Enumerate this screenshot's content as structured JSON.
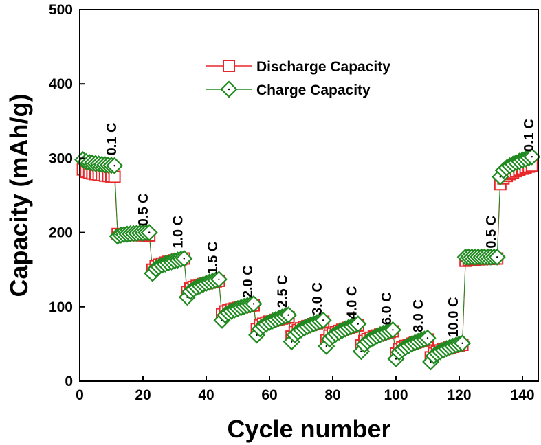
{
  "chart_data": {
    "type": "scatter",
    "title": "",
    "xlabel": "Cycle number",
    "ylabel": "Capacity (mAh/g)",
    "xlim": [
      0,
      145
    ],
    "ylim": [
      0,
      500
    ],
    "xticks": [
      "0",
      "20",
      "40",
      "60",
      "80",
      "100",
      "120",
      "140"
    ],
    "yticks": [
      "0",
      "100",
      "200",
      "300",
      "400",
      "500"
    ],
    "legend_position": "top-center",
    "colors": {
      "discharge": "#e8272b",
      "charge": "#1f8a1f"
    },
    "rate_labels": [
      {
        "text": "0.1 C",
        "x": 10,
        "y": 300
      },
      {
        "text": "0.5 C",
        "x": 20,
        "y": 205
      },
      {
        "text": "1.0 C",
        "x": 31,
        "y": 175
      },
      {
        "text": "1.5 C",
        "x": 42,
        "y": 140
      },
      {
        "text": "2.0 C",
        "x": 53,
        "y": 108
      },
      {
        "text": "2.5 C",
        "x": 64,
        "y": 95
      },
      {
        "text": "3.0 C",
        "x": 75,
        "y": 85
      },
      {
        "text": "4.0 C",
        "x": 86,
        "y": 80
      },
      {
        "text": "6.0 C",
        "x": 97,
        "y": 72
      },
      {
        "text": "8.0 C",
        "x": 107,
        "y": 62
      },
      {
        "text": "10.0 C",
        "x": 118,
        "y": 55
      },
      {
        "text": "0.5 C",
        "x": 130,
        "y": 175
      },
      {
        "text": "0.1 C",
        "x": 142,
        "y": 305
      }
    ],
    "segments": [
      {
        "rate": "0.1 C",
        "start": 1,
        "end": 11,
        "dis": [
          285,
          275
        ],
        "chg": [
          298,
          290
        ]
      },
      {
        "rate": "0.5 C",
        "start": 12,
        "end": 22,
        "dis": [
          198,
          196
        ],
        "chg": [
          195,
          200
        ]
      },
      {
        "rate": "1.0 C",
        "start": 23,
        "end": 33,
        "dis": [
          150,
          165
        ],
        "chg": [
          145,
          165
        ]
      },
      {
        "rate": "1.5 C",
        "start": 34,
        "end": 44,
        "dis": [
          120,
          135
        ],
        "chg": [
          113,
          137
        ]
      },
      {
        "rate": "2.0 C",
        "start": 45,
        "end": 55,
        "dis": [
          90,
          102
        ],
        "chg": [
          82,
          104
        ]
      },
      {
        "rate": "2.5 C",
        "start": 56,
        "end": 66,
        "dis": [
          70,
          86
        ],
        "chg": [
          62,
          89
        ]
      },
      {
        "rate": "3.0 C",
        "start": 67,
        "end": 77,
        "dis": [
          60,
          80
        ],
        "chg": [
          53,
          82
        ]
      },
      {
        "rate": "4.0 C",
        "start": 78,
        "end": 88,
        "dis": [
          55,
          75
        ],
        "chg": [
          47,
          77
        ]
      },
      {
        "rate": "6.0 C",
        "start": 89,
        "end": 99,
        "dis": [
          48,
          67
        ],
        "chg": [
          40,
          69
        ]
      },
      {
        "rate": "8.0 C",
        "start": 100,
        "end": 110,
        "dis": [
          37,
          56
        ],
        "chg": [
          30,
          58
        ]
      },
      {
        "rate": "10.0 C",
        "start": 111,
        "end": 121,
        "dis": [
          32,
          49
        ],
        "chg": [
          26,
          51
        ]
      },
      {
        "rate": "0.5 C",
        "start": 122,
        "end": 132,
        "dis": [
          162,
          165
        ],
        "chg": [
          167,
          167
        ]
      },
      {
        "rate": "0.1 C",
        "start": 133,
        "end": 143,
        "dis": [
          265,
          290
        ],
        "chg": [
          275,
          302
        ]
      }
    ],
    "series": [
      {
        "name": "Discharge Capacity",
        "marker": "square",
        "color": "#e8272b"
      },
      {
        "name": "Charge Capacity",
        "marker": "diamond",
        "color": "#1f8a1f"
      }
    ]
  }
}
